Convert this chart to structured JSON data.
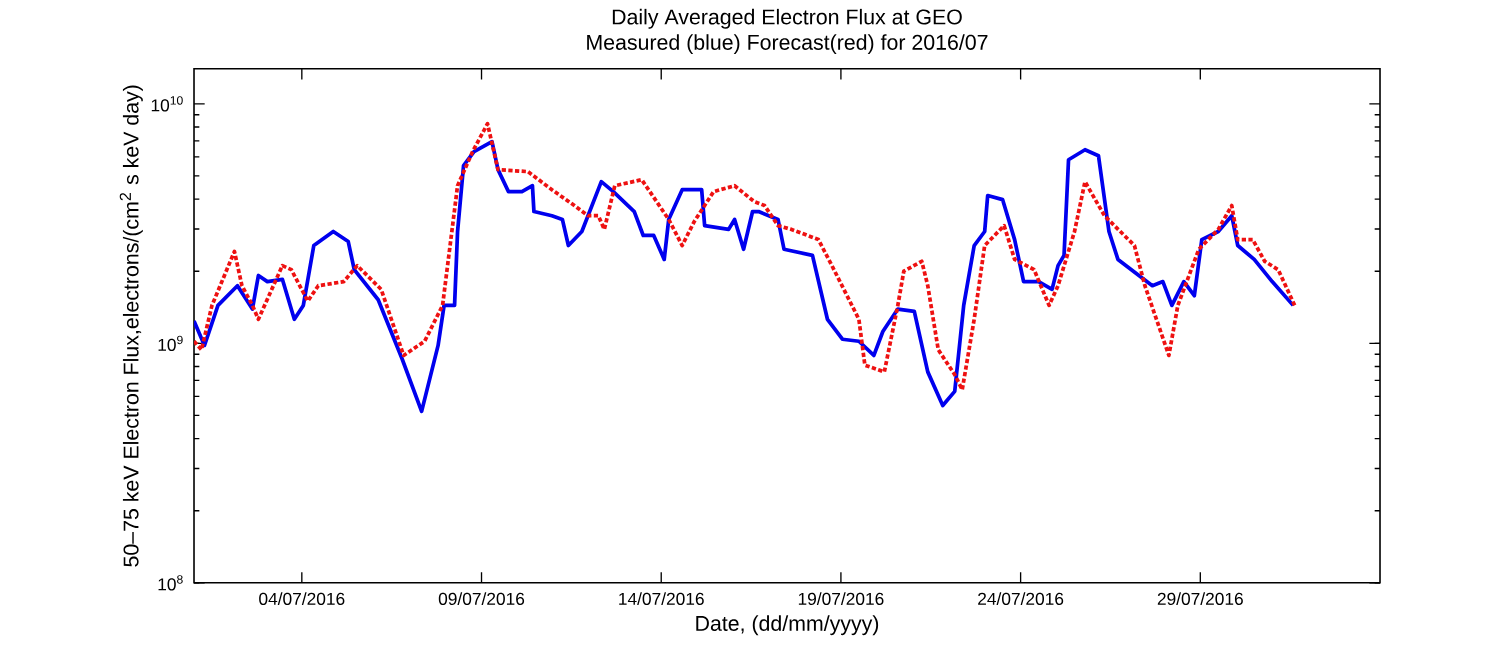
{
  "chart_data": {
    "type": "line",
    "title": "Daily Averaged Electron Flux at GEO",
    "subtitle": "Measured (blue) Forecast(red) for 2016/07",
    "xlabel": "Date, (dd/mm/yyyy)",
    "ylabel": "50–75 keV Electron Flux,electrons/(cm$^{2}$ s keV day)",
    "log": "y",
    "xlim": [
      "2016-07-01",
      "2016-08-03"
    ],
    "ylim": [
      100000000.0,
      14000000000.0
    ],
    "xticks": [
      {
        "value": "2016-07-04",
        "label": "04/07/2016"
      },
      {
        "value": "2016-07-09",
        "label": "09/07/2016"
      },
      {
        "value": "2016-07-14",
        "label": "14/07/2016"
      },
      {
        "value": "2016-07-19",
        "label": "19/07/2016"
      },
      {
        "value": "2016-07-24",
        "label": "24/07/2016"
      },
      {
        "value": "2016-07-29",
        "label": "29/07/2016"
      }
    ],
    "yticks": [
      {
        "value": 100000000.0,
        "label": "10$^{8}$"
      },
      {
        "value": 1000000000.0,
        "label": "10$^{9}$"
      },
      {
        "value": 10000000000.0,
        "label": "10$^{10}$"
      }
    ],
    "series": [
      {
        "color": "#0000ee",
        "line_style": "solid",
        "x": [
          "2016-07-01T00:00",
          "2016-07-01T07:00",
          "2016-07-01T16:00",
          "2016-07-02T05:00",
          "2016-07-02T15:00",
          "2016-07-02T19:00",
          "2016-07-03T01:00",
          "2016-07-03T11:00",
          "2016-07-03T19:00",
          "2016-07-04T01:00",
          "2016-07-04T08:00",
          "2016-07-04T21:00",
          "2016-07-05T07:00",
          "2016-07-05T11:00",
          "2016-07-06T03:00",
          "2016-07-06T19:00",
          "2016-07-07T08:00",
          "2016-07-07T19:00",
          "2016-07-07T23:00",
          "2016-07-08T06:00",
          "2016-07-08T08:00",
          "2016-07-08T12:00",
          "2016-07-08T19:00",
          "2016-07-09T07:00",
          "2016-07-09T11:00",
          "2016-07-09T18:00",
          "2016-07-10T03:00",
          "2016-07-10T10:00",
          "2016-07-10T11:00",
          "2016-07-10T23:00",
          "2016-07-11T06:00",
          "2016-07-11T10:00",
          "2016-07-11T19:00",
          "2016-07-12T08:00",
          "2016-07-12T16:00",
          "2016-07-13T06:00",
          "2016-07-13T12:00",
          "2016-07-13T19:00",
          "2016-07-14T02:00",
          "2016-07-14T05:00",
          "2016-07-14T14:00",
          "2016-07-15T03:00",
          "2016-07-15T05:00",
          "2016-07-15T21:00",
          "2016-07-16T01:00",
          "2016-07-16T07:00",
          "2016-07-16T13:00",
          "2016-07-16T17:00",
          "2016-07-17T06:00",
          "2016-07-17T10:00",
          "2016-07-18T05:00",
          "2016-07-18T15:00",
          "2016-07-19T01:00",
          "2016-07-19T12:00",
          "2016-07-19T22:00",
          "2016-07-20T04:00",
          "2016-07-20T14:00",
          "2016-07-21T01:00",
          "2016-07-21T10:00",
          "2016-07-21T20:00",
          "2016-07-22T04:00",
          "2016-07-22T10:00",
          "2016-07-22T17:00",
          "2016-07-23T00:00",
          "2016-07-23T02:00",
          "2016-07-23T12:00",
          "2016-07-23T20:00",
          "2016-07-24T02:00",
          "2016-07-24T12:00",
          "2016-07-24T21:00",
          "2016-07-25T01:00",
          "2016-07-25T05:00",
          "2016-07-25T08:00",
          "2016-07-25T19:00",
          "2016-07-26T04:00",
          "2016-07-26T11:00",
          "2016-07-26T17:00",
          "2016-07-27T07:00",
          "2016-07-27T16:00",
          "2016-07-27T23:00",
          "2016-07-28T05:00",
          "2016-07-28T13:00",
          "2016-07-28T20:00",
          "2016-07-29T01:00",
          "2016-07-29T12:00",
          "2016-07-29T21:00",
          "2016-07-30T01:00",
          "2016-07-30T12:00",
          "2016-07-31T00:00",
          "2016-07-31T14:00"
        ],
        "values": [
          1240000000.0,
          980000000.0,
          1440000000.0,
          1740000000.0,
          1390000000.0,
          1920000000.0,
          1810000000.0,
          1850000000.0,
          1260000000.0,
          1440000000.0,
          2560000000.0,
          2930000000.0,
          2660000000.0,
          2030000000.0,
          1520000000.0,
          860000000.0,
          520000000.0,
          980000000.0,
          1440000000.0,
          1440000000.0,
          2930000000.0,
          5520000000.0,
          6310000000.0,
          6950000000.0,
          5310000000.0,
          4300000000.0,
          4300000000.0,
          4550000000.0,
          3550000000.0,
          3410000000.0,
          3290000000.0,
          2560000000.0,
          2930000000.0,
          4730000000.0,
          4300000000.0,
          3550000000.0,
          2820000000.0,
          2820000000.0,
          2240000000.0,
          3290000000.0,
          4380000000.0,
          4380000000.0,
          3100000000.0,
          2990000000.0,
          3290000000.0,
          2470000000.0,
          3550000000.0,
          3550000000.0,
          3290000000.0,
          2470000000.0,
          2330000000.0,
          1260000000.0,
          1040000000.0,
          1020000000.0,
          890000000.0,
          1120000000.0,
          1390000000.0,
          1360000000.0,
          760000000.0,
          550000000.0,
          630000000.0,
          1440000000.0,
          2560000000.0,
          2930000000.0,
          4140000000.0,
          3980000000.0,
          2710000000.0,
          1810000000.0,
          1810000000.0,
          1680000000.0,
          2110000000.0,
          2330000000.0,
          5840000000.0,
          6430000000.0,
          6070000000.0,
          2930000000.0,
          2240000000.0,
          1920000000.0,
          1740000000.0,
          1810000000.0,
          1440000000.0,
          1810000000.0,
          1580000000.0,
          2710000000.0,
          2930000000.0,
          3410000000.0,
          2560000000.0,
          2240000000.0,
          1810000000.0,
          1440000000.0
        ]
      },
      {
        "color": "#ee1111",
        "line_style": "dotted",
        "x": [
          "2016-07-01T00:00",
          "2016-07-01T05:00",
          "2016-07-01T12:00",
          "2016-07-02T03:00",
          "2016-07-02T08:00",
          "2016-07-02T15:00",
          "2016-07-02T19:00",
          "2016-07-03T11:00",
          "2016-07-03T17:00",
          "2016-07-04T04:00",
          "2016-07-04T11:00",
          "2016-07-05T04:00",
          "2016-07-05T13:00",
          "2016-07-06T05:00",
          "2016-07-06T20:00",
          "2016-07-07T10:00",
          "2016-07-07T22:00",
          "2016-07-08T08:00",
          "2016-07-08T18:00",
          "2016-07-09T04:00",
          "2016-07-09T11:00",
          "2016-07-10T07:00",
          "2016-07-10T23:00",
          "2016-07-11T14:00",
          "2016-07-11T23:00",
          "2016-07-12T06:00",
          "2016-07-12T10:00",
          "2016-07-12T17:00",
          "2016-07-13T11:00",
          "2016-07-14T05:00",
          "2016-07-14T14:00",
          "2016-07-14T22:00",
          "2016-07-15T11:00",
          "2016-07-16T01:00",
          "2016-07-16T14:00",
          "2016-07-16T21:00",
          "2016-07-17T06:00",
          "2016-07-17T15:00",
          "2016-07-18T09:00",
          "2016-07-18T18:00",
          "2016-07-19T12:00",
          "2016-07-19T16:00",
          "2016-07-20T05:00",
          "2016-07-20T14:00",
          "2016-07-20T18:00",
          "2016-07-21T06:00",
          "2016-07-21T10:00",
          "2016-07-21T17:00",
          "2016-07-22T04:00",
          "2016-07-22T09:00",
          "2016-07-22T17:00",
          "2016-07-23T00:00",
          "2016-07-23T13:00",
          "2016-07-23T20:00",
          "2016-07-24T09:00",
          "2016-07-24T19:00",
          "2016-07-25T01:00",
          "2016-07-25T12:00",
          "2016-07-25T19:00",
          "2016-07-26T08:00",
          "2016-07-27T04:00",
          "2016-07-27T11:00",
          "2016-07-28T03:00",
          "2016-07-28T09:00",
          "2016-07-28T23:00",
          "2016-07-29T12:00",
          "2016-07-29T21:00",
          "2016-07-30T01:00",
          "2016-07-30T11:00",
          "2016-07-30T19:00",
          "2016-07-31T04:00",
          "2016-07-31T15:00"
        ],
        "values": [
          1020000000.0,
          940000000.0,
          1440000000.0,
          2420000000.0,
          1740000000.0,
          1440000000.0,
          1260000000.0,
          2110000000.0,
          2030000000.0,
          1500000000.0,
          1740000000.0,
          1810000000.0,
          2110000000.0,
          1680000000.0,
          890000000.0,
          1020000000.0,
          1440000000.0,
          4550000000.0,
          6310000000.0,
          8260000000.0,
          5310000000.0,
          5210000000.0,
          4380000000.0,
          3760000000.0,
          3410000000.0,
          3410000000.0,
          2990000000.0,
          4550000000.0,
          4820000000.0,
          3290000000.0,
          2560000000.0,
          3220000000.0,
          4300000000.0,
          4550000000.0,
          3910000000.0,
          3760000000.0,
          3100000000.0,
          2990000000.0,
          2710000000.0,
          2110000000.0,
          1260000000.0,
          810000000.0,
          760000000.0,
          1440000000.0,
          2000000000.0,
          2200000000.0,
          1740000000.0,
          940000000.0,
          740000000.0,
          640000000.0,
          1260000000.0,
          2560000000.0,
          3100000000.0,
          2240000000.0,
          2030000000.0,
          1440000000.0,
          1740000000.0,
          2930000000.0,
          4730000000.0,
          3410000000.0,
          2560000000.0,
          1740000000.0,
          890000000.0,
          1440000000.0,
          2470000000.0,
          2990000000.0,
          3760000000.0,
          2710000000.0,
          2710000000.0,
          2200000000.0,
          2030000000.0,
          1440000000.0
        ]
      }
    ]
  }
}
